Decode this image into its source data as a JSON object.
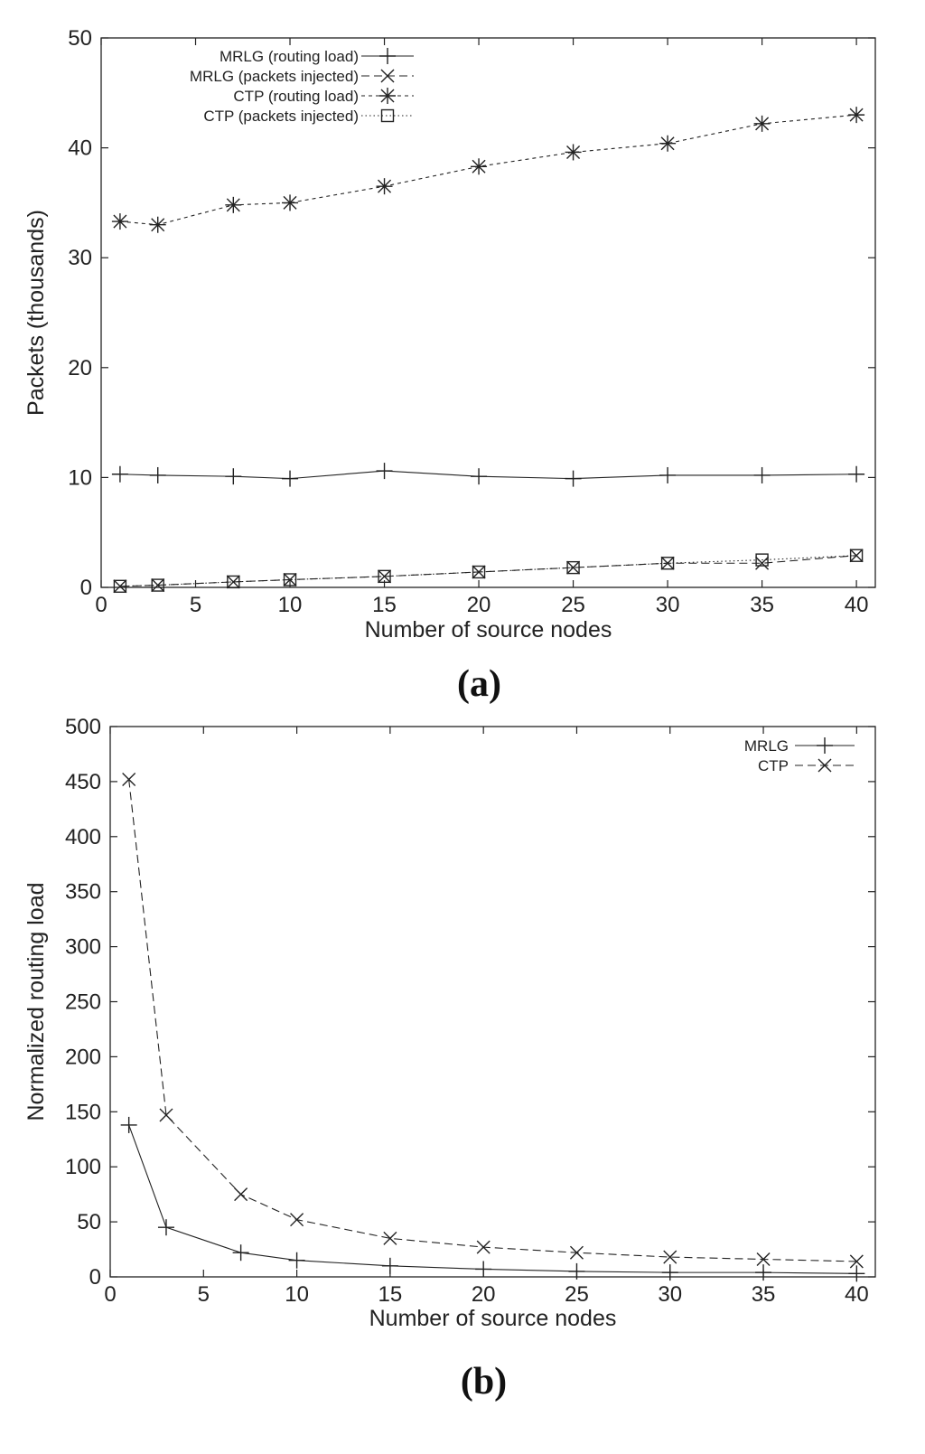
{
  "chart_data": [
    {
      "type": "line",
      "panel_label": "(a)",
      "title": "",
      "xlabel": "Number of source nodes",
      "ylabel": "Packets (thousands)",
      "xlim": [
        0,
        41
      ],
      "ylim": [
        0,
        50
      ],
      "xticks": [
        0,
        5,
        10,
        15,
        20,
        25,
        30,
        35,
        40
      ],
      "yticks": [
        0,
        10,
        20,
        30,
        40,
        50
      ],
      "grid": false,
      "legend_position": "top-left",
      "series": [
        {
          "name": "MRLG (routing load)",
          "marker": "plus",
          "dash": "solid",
          "x": [
            1,
            3,
            7,
            10,
            15,
            20,
            25,
            30,
            35,
            40
          ],
          "y": [
            10.3,
            10.2,
            10.1,
            9.9,
            10.6,
            10.1,
            9.9,
            10.2,
            10.2,
            10.3
          ]
        },
        {
          "name": "MRLG (packets injected)",
          "marker": "x",
          "dash": "dashed",
          "x": [
            1,
            3,
            7,
            10,
            15,
            20,
            25,
            30,
            35,
            40
          ],
          "y": [
            0.1,
            0.2,
            0.5,
            0.7,
            1.0,
            1.4,
            1.8,
            2.2,
            2.2,
            2.9
          ]
        },
        {
          "name": "CTP (routing load)",
          "marker": "star",
          "dash": "short-dashed",
          "x": [
            1,
            3,
            7,
            10,
            15,
            20,
            25,
            30,
            35,
            40
          ],
          "y": [
            33.3,
            33.0,
            34.8,
            35.0,
            36.5,
            38.3,
            39.6,
            40.4,
            42.2,
            43.0
          ]
        },
        {
          "name": "CTP (packets injected)",
          "marker": "square",
          "dash": "dotted",
          "x": [
            1,
            3,
            7,
            10,
            15,
            20,
            25,
            30,
            35,
            40
          ],
          "y": [
            0.1,
            0.2,
            0.5,
            0.7,
            1.0,
            1.4,
            1.8,
            2.2,
            2.5,
            2.9
          ]
        }
      ]
    },
    {
      "type": "line",
      "panel_label": "(b)",
      "title": "",
      "xlabel": "Number of source nodes",
      "ylabel": "Normalized routing load",
      "xlim": [
        0,
        41
      ],
      "ylim": [
        0,
        500
      ],
      "xticks": [
        0,
        5,
        10,
        15,
        20,
        25,
        30,
        35,
        40
      ],
      "yticks": [
        0,
        50,
        100,
        150,
        200,
        250,
        300,
        350,
        400,
        450,
        500
      ],
      "grid": false,
      "legend_position": "top-right",
      "series": [
        {
          "name": "MRLG",
          "marker": "plus",
          "dash": "solid",
          "x": [
            1,
            3,
            7,
            10,
            15,
            20,
            25,
            30,
            35,
            40
          ],
          "y": [
            138,
            45,
            22,
            15,
            10,
            7,
            5,
            4,
            4,
            3
          ]
        },
        {
          "name": "CTP",
          "marker": "x",
          "dash": "dashed",
          "x": [
            1,
            3,
            7,
            10,
            15,
            20,
            25,
            30,
            35,
            40
          ],
          "y": [
            452,
            147,
            75,
            52,
            35,
            27,
            22,
            18,
            16,
            14
          ]
        }
      ]
    }
  ]
}
